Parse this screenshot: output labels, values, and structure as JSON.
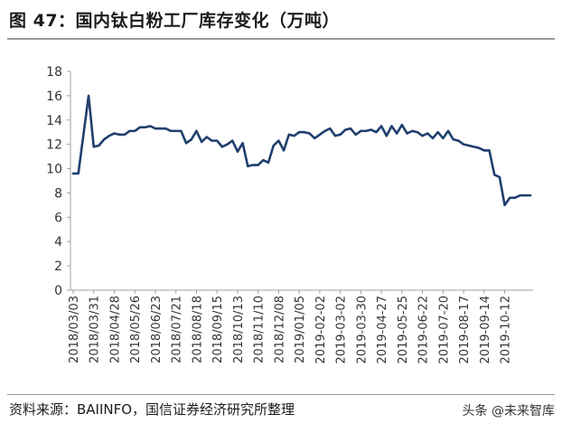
{
  "header": {
    "title": "图 47：国内钛白粉工厂库存变化（万吨）"
  },
  "footer": {
    "source": "资料来源：BAIINFO，国信证券经济研究所整理",
    "watermark": "头条 @未来智库"
  },
  "colors": {
    "line": "#1f3f6e",
    "axis": "#a0a0a0",
    "text": "#333333"
  },
  "chart_data": {
    "type": "line",
    "title": "",
    "xlabel": "",
    "ylabel": "",
    "ylim": [
      0,
      18
    ],
    "yticks": [
      0,
      2,
      4,
      6,
      8,
      10,
      12,
      14,
      16,
      18
    ],
    "grid": false,
    "x_tick_labels": [
      "2018/03/03",
      "2018/03/31",
      "2018/04/28",
      "2018/05/26",
      "2018/06/23",
      "2018/07/21",
      "2018/08/18",
      "2018/09/15",
      "2018/10/13",
      "2018/11/10",
      "2018/12/08",
      "2019/01/05",
      "2019-02-02",
      "2019-03-02",
      "2019-03-30",
      "2019-04-27",
      "2019-05-25",
      "2019-06-22",
      "2019-07-20",
      "2019-08-17",
      "2019-09-14",
      "2019-10-12"
    ],
    "series": [
      {
        "values": [
          9.6,
          9.6,
          12.8,
          16.0,
          11.8,
          11.9,
          12.4,
          12.7,
          12.9,
          12.8,
          12.8,
          13.1,
          13.1,
          13.4,
          13.4,
          13.5,
          13.3,
          13.3,
          13.3,
          13.1,
          13.1,
          13.1,
          12.1,
          12.4,
          13.1,
          12.2,
          12.6,
          12.3,
          12.3,
          11.8,
          12.0,
          12.3,
          11.4,
          12.1,
          10.2,
          10.3,
          10.3,
          10.7,
          10.5,
          11.9,
          12.3,
          11.5,
          12.8,
          12.7,
          13.0,
          13.0,
          12.9,
          12.5,
          12.8,
          13.1,
          13.3,
          12.7,
          12.8,
          13.2,
          13.3,
          12.8,
          13.1,
          13.1,
          13.2,
          13.0,
          13.5,
          12.7,
          13.5,
          12.9,
          13.6,
          12.9,
          13.1,
          13.0,
          12.7,
          12.9,
          12.5,
          13.0,
          12.5,
          13.1,
          12.4,
          12.3,
          12.0,
          11.9,
          11.8,
          11.7,
          11.5,
          11.5,
          9.5,
          9.3,
          7.0,
          7.6,
          7.6,
          7.8,
          7.8,
          7.8
        ]
      }
    ]
  }
}
